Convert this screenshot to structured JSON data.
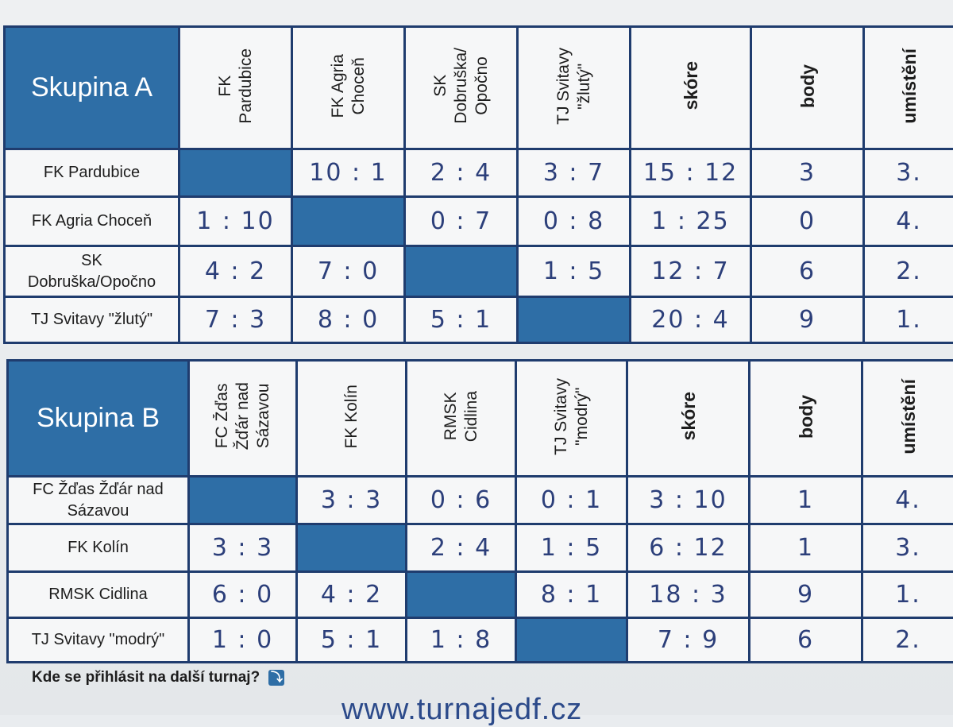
{
  "groupA": {
    "title": "Skupina A",
    "teams": [
      {
        "header": "FK\nPardubice",
        "label": "FK Pardubice"
      },
      {
        "header": "FK Agria\nChoceň",
        "label": "FK Agria Choceň"
      },
      {
        "header": "SK\nDobruška/\nOpočno",
        "label": "SK\nDobruška/Opočno"
      },
      {
        "header": "TJ Svitavy\n\"žlutý\"",
        "label": "TJ Svitavy \"žlutý\""
      }
    ],
    "stat_headers": {
      "score": "skóre",
      "points": "body",
      "place": "umístění"
    },
    "rows": [
      {
        "results": [
          "",
          "10 : 1",
          "2 : 4",
          "3 : 7"
        ],
        "score": "15 : 12",
        "points": "3",
        "place": "3."
      },
      {
        "results": [
          "1 : 10",
          "",
          "0 : 7",
          "0 : 8"
        ],
        "score": "1 : 25",
        "points": "0",
        "place": "4."
      },
      {
        "results": [
          "4 : 2",
          "7 : 0",
          "",
          "1 : 5"
        ],
        "score": "12 : 7",
        "points": "6",
        "place": "2."
      },
      {
        "results": [
          "7 : 3",
          "8 : 0",
          "5 : 1",
          ""
        ],
        "score": "20 : 4",
        "points": "9",
        "place": "1."
      }
    ]
  },
  "groupB": {
    "title": "Skupina B",
    "teams": [
      {
        "header": "FC Žďas\nŽďár nad\nSázavou",
        "label": "FC Žďas Žďár nad\nSázavou"
      },
      {
        "header": "FK Kolín",
        "label": "FK Kolín"
      },
      {
        "header": "RMSK\nCidlina",
        "label": "RMSK Cidlina"
      },
      {
        "header": "TJ Svitavy\n\"modrý\"",
        "label": "TJ Svitavy \"modrý\""
      }
    ],
    "stat_headers": {
      "score": "skóre",
      "points": "body",
      "place": "umístění"
    },
    "rows": [
      {
        "results": [
          "",
          "3 : 3",
          "0 : 6",
          "0 : 1"
        ],
        "score": "3 : 10",
        "points": "1",
        "place": "4."
      },
      {
        "results": [
          "3 : 3",
          "",
          "2 : 4",
          "1 : 5"
        ],
        "score": "6 : 12",
        "points": "1",
        "place": "3."
      },
      {
        "results": [
          "6 : 0",
          "4 : 2",
          "",
          "8 : 1"
        ],
        "score": "18 : 3",
        "points": "9",
        "place": "1."
      },
      {
        "results": [
          "1 : 0",
          "5 : 1",
          "1 : 8",
          ""
        ],
        "score": "7 : 9",
        "points": "6",
        "place": "2."
      }
    ]
  },
  "footer": {
    "question": "Kde se přihlásit na další turnaj?",
    "arrow_icon": "arrow-down-right-icon",
    "url": "www.turnajedf.cz"
  },
  "colors": {
    "accent": "#2e6ea6",
    "border": "#1f3c6e",
    "handwriting": "#2c3f7a"
  }
}
